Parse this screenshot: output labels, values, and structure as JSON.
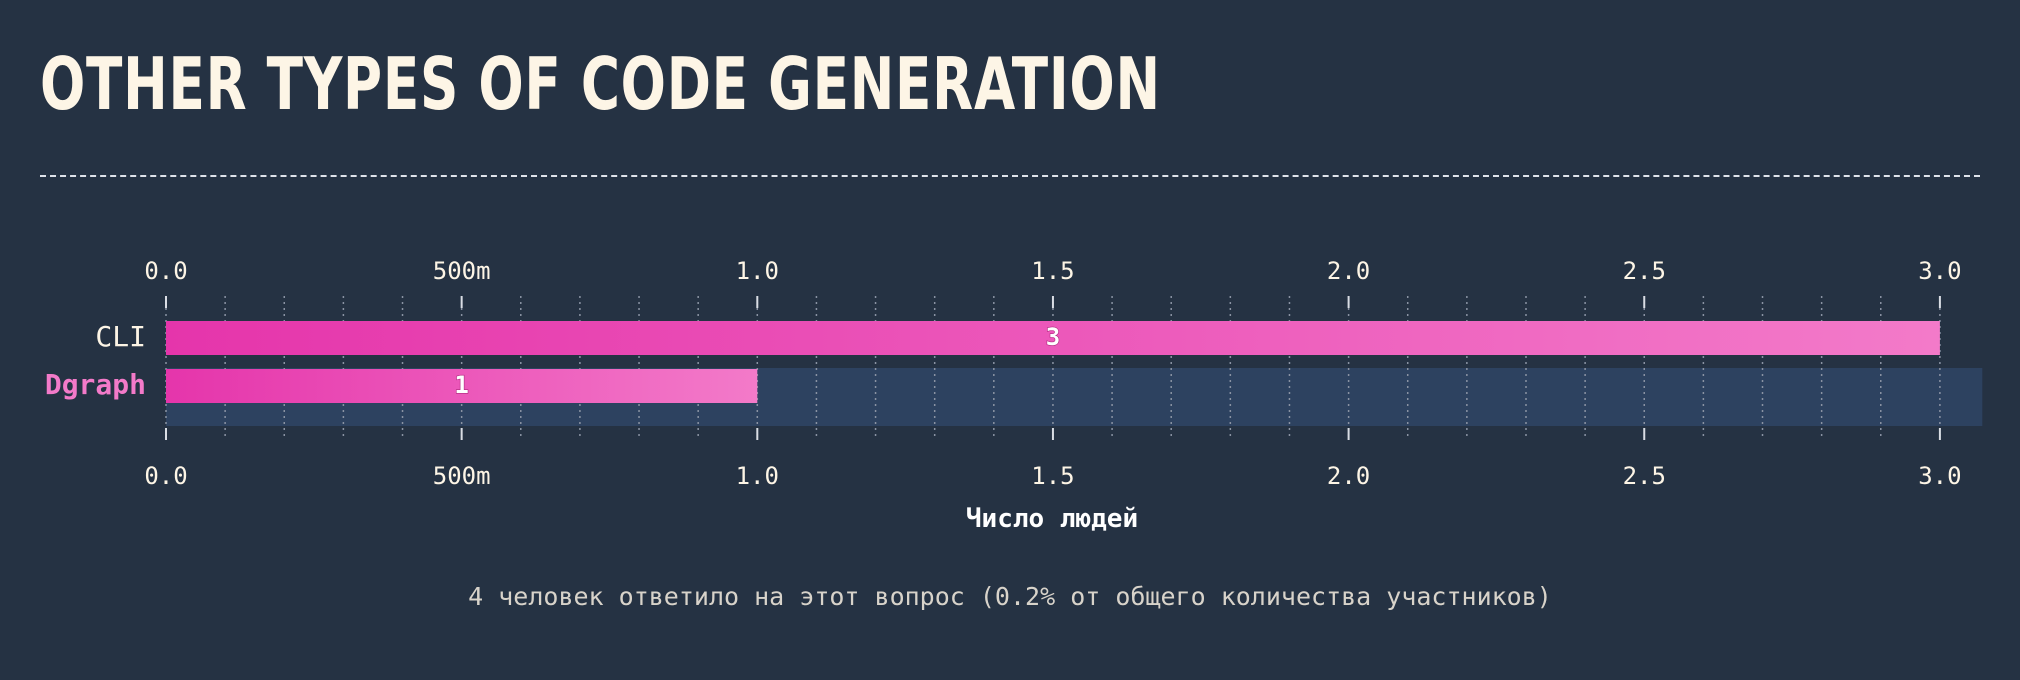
{
  "page": {
    "title": "OTHER TYPES OF CODE GENERATION",
    "footnote": "4 человек ответило на этот вопрос (0.2% от общего количества участников)"
  },
  "chart_data": {
    "type": "bar",
    "orientation": "horizontal",
    "title": "OTHER TYPES OF CODE GENERATION",
    "categories": [
      "CLI",
      "Dgraph"
    ],
    "values": [
      3,
      1
    ],
    "data_labels": [
      "3",
      "1"
    ],
    "highlighted_category": "Dgraph",
    "xlabel": "Число людей",
    "xlim": [
      0,
      3.07
    ],
    "x_ticks": [
      0,
      0.5,
      1.0,
      1.5,
      2.0,
      2.5,
      3.0
    ],
    "x_tick_labels": [
      "0.0",
      "500m",
      "1.0",
      "1.5",
      "2.0",
      "2.5",
      "3.0"
    ],
    "minor_grid_step": 0.1,
    "grid": true,
    "axis_ticks_top_and_bottom": true,
    "colors": {
      "background": "#253243",
      "bar_start": "#e535ab",
      "bar_end": "#f37ac9",
      "highlight_row": "#2d4260",
      "highlight_label": "#f37ac9",
      "text": "#fdf5e6",
      "grid": "#8a93a3"
    }
  }
}
